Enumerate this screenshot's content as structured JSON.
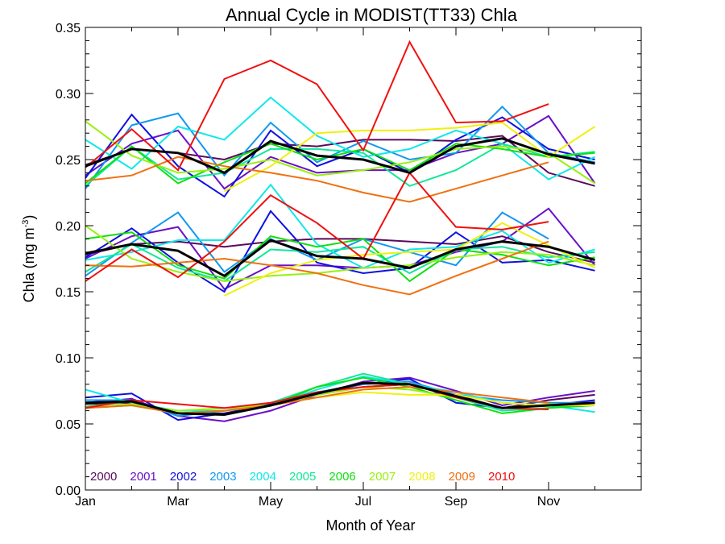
{
  "chart_data": {
    "type": "line",
    "title": "Annual Cycle in MODIST(TT33) Chla",
    "xlabel": "Month of Year",
    "ylabel": {
      "main": "Chla (mg m",
      "sup": "-3",
      "close": ")"
    },
    "x_ticks": [
      {
        "label": "Jan",
        "month": 1
      },
      {
        "label": "Mar",
        "month": 3
      },
      {
        "label": "May",
        "month": 5
      },
      {
        "label": "Jul",
        "month": 7
      },
      {
        "label": "Sep",
        "month": 9
      },
      {
        "label": "Nov",
        "month": 11
      }
    ],
    "xlim": [
      1,
      13
    ],
    "y_ticks": [
      "0.00",
      "0.05",
      "0.10",
      "0.15",
      "0.20",
      "0.25",
      "0.30",
      "0.35"
    ],
    "ylim": [
      0,
      0.35
    ],
    "legend_position": "bottom-left",
    "mean_color": "#000000",
    "groups": [
      {
        "stat": "upper",
        "series": [
          {
            "name": "2000",
            "color": "#5a0a5a",
            "values": [
              0.246,
              0.258,
              0.255,
              0.25,
              0.262,
              0.26,
              0.265,
              0.265,
              0.264,
              0.268,
              0.24,
              0.23
            ]
          },
          {
            "name": "2001",
            "color": "#6a10c8",
            "values": [
              0.238,
              0.262,
              0.272,
              0.228,
              0.252,
              0.24,
              0.242,
              0.242,
              0.255,
              0.262,
              0.283,
              0.232
            ]
          },
          {
            "name": "2002",
            "color": "#1010e0",
            "values": [
              0.236,
              0.284,
              0.245,
              0.222,
              0.272,
              0.245,
              0.258,
              0.24,
              0.265,
              0.282,
              0.258,
              0.25
            ]
          },
          {
            "name": "2003",
            "color": "#1098f0",
            "values": [
              0.228,
              0.276,
              0.285,
              0.238,
              0.278,
              0.248,
              0.264,
              0.25,
              0.255,
              0.29,
              0.255,
              0.248
            ]
          },
          {
            "name": "2004",
            "color": "#10e8e8",
            "values": [
              0.265,
              0.243,
              0.275,
              0.265,
              0.297,
              0.268,
              0.252,
              0.258,
              0.272,
              0.262,
              0.235,
              0.252
            ]
          },
          {
            "name": "2005",
            "color": "#10e898",
            "values": [
              0.23,
              0.26,
              0.235,
              0.24,
              0.258,
              0.258,
              0.255,
              0.23,
              0.242,
              0.262,
              0.252,
              0.256
            ]
          },
          {
            "name": "2006",
            "color": "#10e010",
            "values": [
              0.232,
              0.26,
              0.232,
              0.248,
              0.262,
              0.25,
              0.258,
              0.242,
              0.262,
              0.258,
              0.252,
              0.255
            ]
          },
          {
            "name": "2007",
            "color": "#98f010",
            "values": [
              0.279,
              0.253,
              0.24,
              0.243,
              0.25,
              0.238,
              0.242,
              0.248,
              0.258,
              0.26,
              0.255,
              0.232
            ]
          },
          {
            "name": "2008",
            "color": "#f0f010",
            "values": [
              null,
              null,
              null,
              0.226,
              0.245,
              0.27,
              0.272,
              0.272,
              0.274,
              0.278,
              0.252,
              0.275
            ]
          },
          {
            "name": "2009",
            "color": "#f07010",
            "values": [
              0.234,
              0.238,
              0.252,
              0.245,
              0.24,
              0.234,
              0.225,
              0.218,
              0.228,
              0.238,
              0.248,
              null
            ]
          },
          {
            "name": "2010",
            "color": "#f01010",
            "values": [
              0.244,
              0.273,
              0.242,
              0.311,
              0.325,
              0.307,
              0.257,
              0.339,
              0.278,
              0.279,
              0.292,
              null
            ]
          }
        ],
        "mean": [
          0.245,
          0.258,
          0.255,
          0.24,
          0.264,
          0.253,
          0.25,
          0.24,
          0.26,
          0.266,
          0.254,
          0.247
        ]
      },
      {
        "stat": "middle",
        "series": [
          {
            "name": "2000",
            "color": "#5a0a5a",
            "values": [
              0.178,
              0.186,
              0.188,
              0.184,
              0.188,
              0.19,
              0.19,
              0.188,
              0.186,
              0.192,
              0.18,
              0.172
            ]
          },
          {
            "name": "2001",
            "color": "#6a10c8",
            "values": [
              0.175,
              0.192,
              0.199,
              0.152,
              0.17,
              0.17,
              0.168,
              0.17,
              0.18,
              0.188,
              0.213,
              0.17
            ]
          },
          {
            "name": "2002",
            "color": "#1010e0",
            "values": [
              0.176,
              0.198,
              0.172,
              0.15,
              0.211,
              0.172,
              0.164,
              0.168,
              0.195,
              0.172,
              0.174,
              0.166
            ]
          },
          {
            "name": "2003",
            "color": "#1098f0",
            "values": [
              0.162,
              0.187,
              0.21,
              0.165,
              0.19,
              0.174,
              0.19,
              0.18,
              0.17,
              0.21,
              0.19,
              null
            ]
          },
          {
            "name": "2004",
            "color": "#10e8e8",
            "values": [
              0.174,
              0.18,
              0.189,
              0.189,
              0.231,
              0.186,
              0.168,
              0.182,
              0.184,
              0.196,
              0.172,
              0.182
            ]
          },
          {
            "name": "2005",
            "color": "#10e898",
            "values": [
              0.165,
              0.186,
              0.168,
              0.158,
              0.182,
              0.18,
              0.184,
              0.164,
              0.182,
              0.184,
              0.176,
              0.18
            ]
          },
          {
            "name": "2006",
            "color": "#10e010",
            "values": [
              0.19,
              0.195,
              0.17,
              0.16,
              0.192,
              0.184,
              0.19,
              0.158,
              0.182,
              0.178,
              0.17,
              0.176
            ]
          },
          {
            "name": "2007",
            "color": "#98f010",
            "values": [
              0.2,
              0.175,
              0.165,
              0.158,
              0.162,
              0.164,
              0.168,
              0.17,
              0.176,
              0.18,
              0.178,
              0.17
            ]
          },
          {
            "name": "2008",
            "color": "#f0f010",
            "values": [
              null,
              null,
              null,
              0.147,
              0.164,
              0.174,
              0.178,
              0.18,
              0.182,
              0.202,
              0.185,
              0.168
            ]
          },
          {
            "name": "2009",
            "color": "#f07010",
            "values": [
              0.17,
              0.169,
              0.172,
              0.175,
              0.17,
              0.164,
              0.155,
              0.148,
              0.162,
              0.175,
              0.188,
              null
            ]
          },
          {
            "name": "2010",
            "color": "#f01010",
            "values": [
              0.158,
              0.182,
              0.161,
              0.188,
              0.223,
              0.202,
              0.175,
              0.24,
              0.199,
              0.197,
              0.203,
              null
            ]
          }
        ],
        "mean": [
          0.179,
          0.186,
          0.181,
          0.162,
          0.189,
          0.177,
          0.175,
          0.168,
          0.182,
          0.188,
          0.184,
          0.174
        ]
      },
      {
        "stat": "lower",
        "series": [
          {
            "name": "2000",
            "color": "#5a0a5a",
            "values": [
              0.065,
              0.066,
              0.058,
              0.058,
              0.065,
              0.072,
              0.078,
              0.08,
              0.072,
              0.062,
              0.068,
              0.072
            ]
          },
          {
            "name": "2001",
            "color": "#6a10c8",
            "values": [
              0.066,
              0.069,
              0.056,
              0.052,
              0.06,
              0.072,
              0.082,
              0.085,
              0.075,
              0.064,
              0.07,
              0.075
            ]
          },
          {
            "name": "2002",
            "color": "#1010e0",
            "values": [
              0.07,
              0.073,
              0.053,
              0.058,
              0.064,
              0.073,
              0.08,
              0.084,
              0.066,
              0.062,
              0.064,
              0.068
            ]
          },
          {
            "name": "2003",
            "color": "#1098f0",
            "values": [
              0.068,
              0.068,
              0.056,
              0.06,
              0.066,
              0.074,
              0.08,
              0.082,
              0.072,
              0.068,
              0.066,
              0.066
            ]
          },
          {
            "name": "2004",
            "color": "#10e8e8",
            "values": [
              0.076,
              0.066,
              0.06,
              0.06,
              0.064,
              0.076,
              0.086,
              0.08,
              0.074,
              0.066,
              0.064,
              0.059
            ]
          },
          {
            "name": "2005",
            "color": "#10e898",
            "values": [
              0.062,
              0.064,
              0.058,
              0.06,
              0.066,
              0.078,
              0.088,
              0.08,
              0.07,
              0.06,
              0.062,
              0.066
            ]
          },
          {
            "name": "2006",
            "color": "#10e010",
            "values": [
              0.063,
              0.067,
              0.058,
              0.06,
              0.064,
              0.078,
              0.085,
              0.078,
              0.068,
              0.058,
              0.062,
              0.064
            ]
          },
          {
            "name": "2007",
            "color": "#98f010",
            "values": [
              0.062,
              0.065,
              0.06,
              0.062,
              0.064,
              0.072,
              0.078,
              0.076,
              0.07,
              0.062,
              0.065,
              0.064
            ]
          },
          {
            "name": "2008",
            "color": "#f0f010",
            "values": [
              null,
              null,
              null,
              0.06,
              0.064,
              0.07,
              0.074,
              0.072,
              0.072,
              0.066,
              0.064,
              0.064
            ]
          },
          {
            "name": "2009",
            "color": "#f07010",
            "values": [
              0.062,
              0.064,
              0.058,
              0.06,
              0.064,
              0.07,
              0.076,
              0.078,
              0.074,
              0.07,
              0.066,
              null
            ]
          },
          {
            "name": "2010",
            "color": "#f01010",
            "values": [
              0.062,
              0.068,
              0.065,
              0.062,
              0.066,
              0.074,
              0.078,
              0.08,
              0.07,
              0.062,
              0.061,
              null
            ]
          }
        ],
        "mean": [
          0.066,
          0.067,
          0.058,
          0.057,
          0.064,
          0.073,
          0.081,
          0.08,
          0.071,
          0.062,
          0.064,
          0.066
        ]
      }
    ]
  }
}
